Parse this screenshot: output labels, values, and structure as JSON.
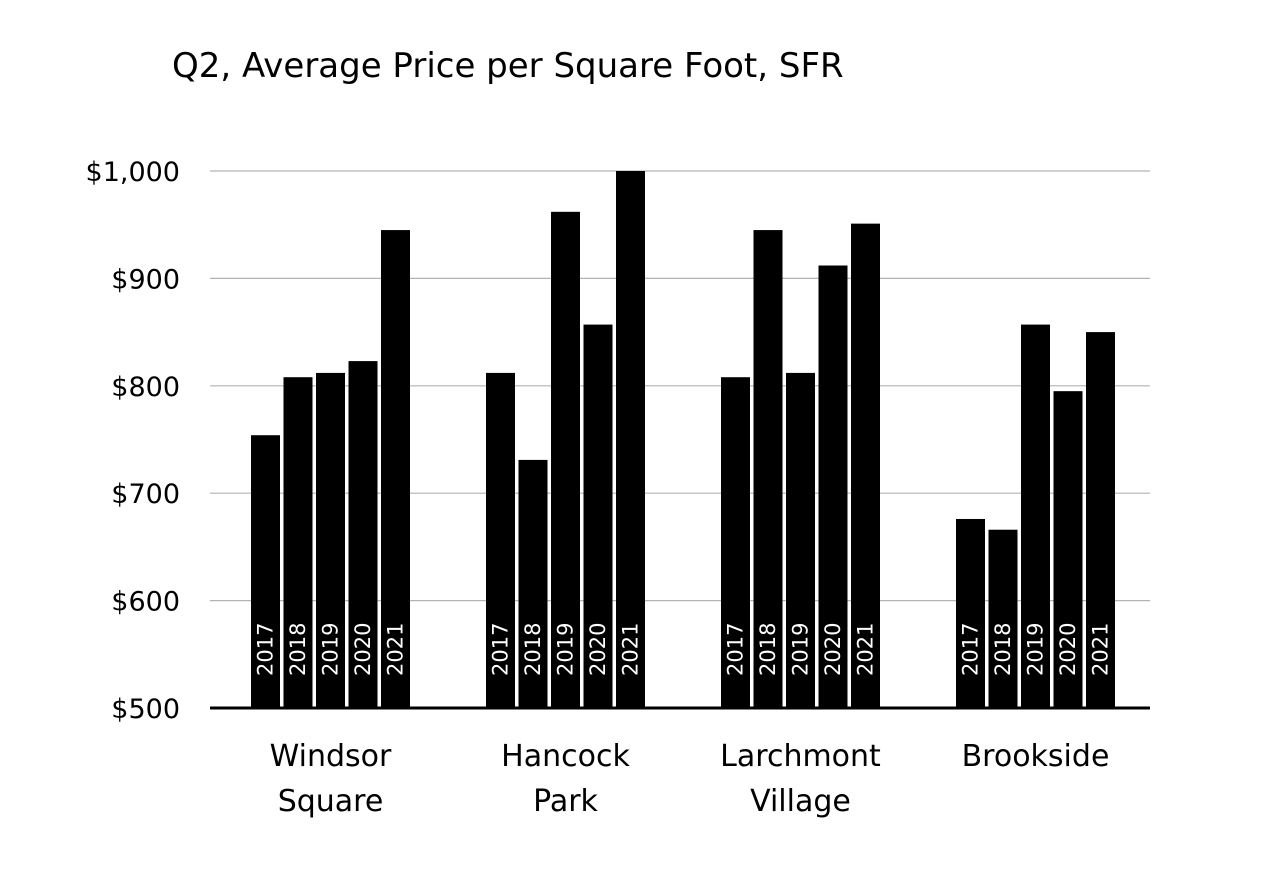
{
  "chart_data": {
    "type": "bar",
    "title": "Q2, Average Price per Square Foot, SFR",
    "xlabel": "",
    "ylabel": "",
    "ylim": [
      500,
      1000
    ],
    "yticks": [
      500,
      600,
      700,
      800,
      900,
      1000
    ],
    "ytick_labels": [
      "$500",
      "$600",
      "$700",
      "$800",
      "$900",
      "$1,000"
    ],
    "grid": true,
    "legend": "none",
    "bar_color": "#000000",
    "categories": [
      {
        "name": "Windsor Square",
        "lines": [
          "Windsor",
          "Square"
        ]
      },
      {
        "name": "Hancock Park",
        "lines": [
          "Hancock",
          "Park"
        ]
      },
      {
        "name": "Larchmont Village",
        "lines": [
          "Larchmont",
          "Village"
        ]
      },
      {
        "name": "Brookside",
        "lines": [
          "Brookside"
        ]
      }
    ],
    "series": [
      {
        "name": "2017",
        "values": [
          754,
          812,
          808,
          676
        ]
      },
      {
        "name": "2018",
        "values": [
          808,
          731,
          945,
          666
        ]
      },
      {
        "name": "2019",
        "values": [
          812,
          962,
          812,
          857
        ]
      },
      {
        "name": "2020",
        "values": [
          823,
          857,
          912,
          795
        ]
      },
      {
        "name": "2021",
        "values": [
          945,
          1000,
          951,
          850
        ]
      }
    ]
  }
}
